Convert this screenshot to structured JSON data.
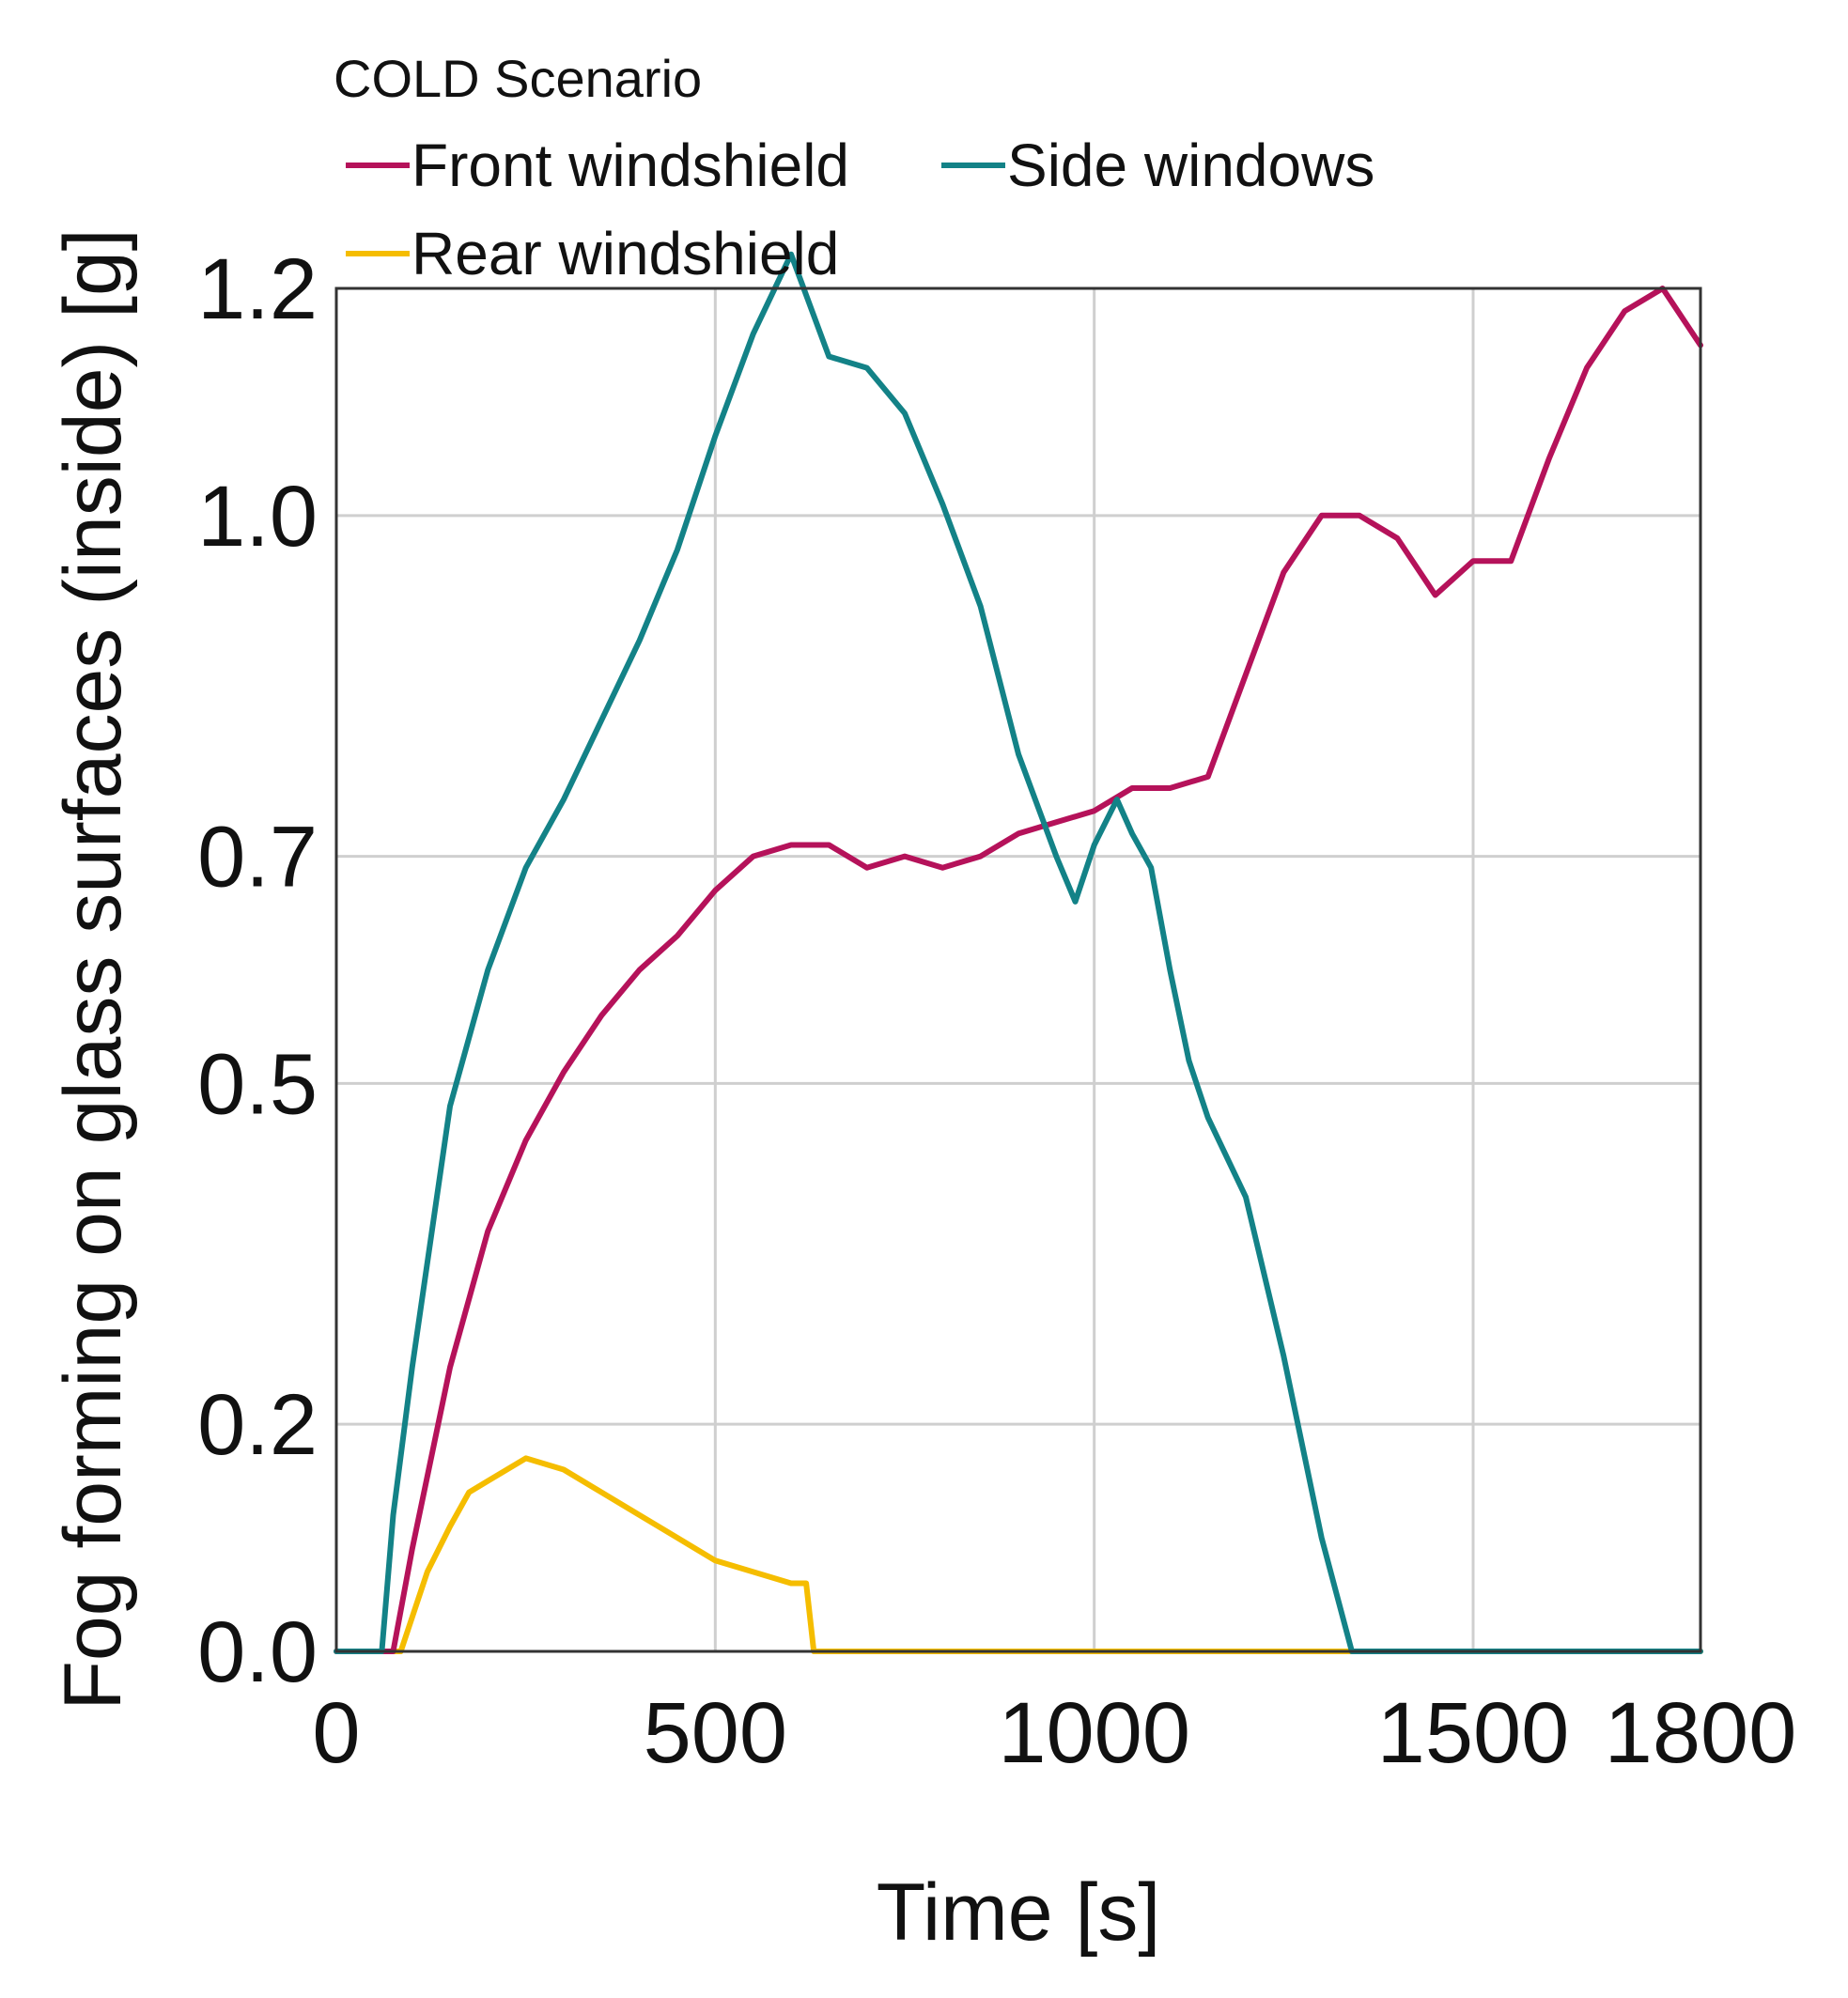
{
  "chart_data": {
    "type": "line",
    "title": "",
    "legend": {
      "title": "COLD Scenario",
      "placement": "top-left, above plot"
    },
    "xlabel": "Time [s]",
    "ylabel": "Fog forming on glass surfaces (inside) [g]",
    "xlim": [
      0,
      1800
    ],
    "ylim": [
      0,
      1.2
    ],
    "xticks": [
      0,
      500,
      1000,
      1500,
      1800
    ],
    "xtick_labels": [
      "0",
      "500",
      "1000",
      "1500",
      "1800"
    ],
    "yticks": [
      0.0,
      0.2,
      0.5,
      0.7,
      1.0,
      1.2
    ],
    "ytick_labels": [
      "0.0",
      "0.2",
      "0.5",
      "0.7",
      "1.0",
      "1.2"
    ],
    "grid": true,
    "series": [
      {
        "name": "Front windshield",
        "color": "#b5125a",
        "x": [
          0,
          60,
          75,
          100,
          150,
          200,
          250,
          300,
          350,
          400,
          450,
          500,
          550,
          600,
          650,
          700,
          750,
          800,
          850,
          900,
          950,
          1000,
          1050,
          1100,
          1150,
          1200,
          1250,
          1300,
          1350,
          1400,
          1450,
          1500,
          1550,
          1600,
          1650,
          1700,
          1750,
          1800
        ],
        "y": [
          0,
          0,
          0,
          0.09,
          0.25,
          0.37,
          0.45,
          0.51,
          0.56,
          0.6,
          0.63,
          0.67,
          0.7,
          0.71,
          0.71,
          0.69,
          0.7,
          0.69,
          0.7,
          0.72,
          0.73,
          0.74,
          0.76,
          0.76,
          0.77,
          0.86,
          0.95,
          1.0,
          1.0,
          0.98,
          0.93,
          0.96,
          0.96,
          1.05,
          1.13,
          1.18,
          1.2,
          1.15
        ]
      },
      {
        "name": "Side windows",
        "color": "#138287",
        "x": [
          0,
          60,
          75,
          100,
          150,
          200,
          250,
          300,
          350,
          400,
          450,
          500,
          550,
          600,
          650,
          700,
          750,
          800,
          850,
          900,
          950,
          975,
          1000,
          1030,
          1050,
          1075,
          1100,
          1125,
          1150,
          1200,
          1250,
          1300,
          1340,
          1800
        ],
        "y": [
          0,
          0,
          0.12,
          0.25,
          0.48,
          0.6,
          0.69,
          0.75,
          0.82,
          0.89,
          0.97,
          1.07,
          1.16,
          1.23,
          1.14,
          1.13,
          1.09,
          1.01,
          0.92,
          0.79,
          0.7,
          0.66,
          0.71,
          0.75,
          0.72,
          0.69,
          0.6,
          0.52,
          0.47,
          0.4,
          0.26,
          0.1,
          0.0,
          0.0
        ]
      },
      {
        "name": "Rear windshield",
        "color": "#f5bd00",
        "x": [
          0,
          70,
          85,
          100,
          120,
          150,
          175,
          200,
          250,
          300,
          350,
          400,
          450,
          500,
          550,
          600,
          620,
          630,
          1800
        ],
        "y": [
          0,
          0,
          0,
          0.03,
          0.07,
          0.11,
          0.14,
          0.15,
          0.17,
          0.16,
          0.14,
          0.12,
          0.1,
          0.08,
          0.07,
          0.06,
          0.06,
          0.0,
          0.0
        ]
      }
    ]
  }
}
